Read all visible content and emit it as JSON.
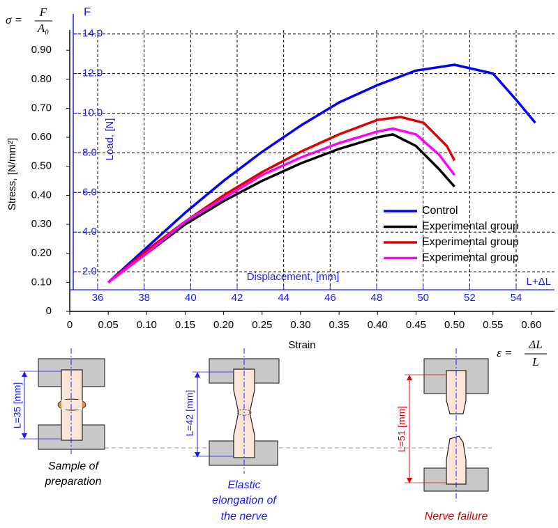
{
  "chart_data": {
    "type": "line",
    "stress_formula": {
      "lhs": "σ =",
      "numerator": "F",
      "denominator": "A₀"
    },
    "strain_formula": {
      "lhs": "ε =",
      "numerator": "ΔL",
      "denominator": "L"
    },
    "x_label": "Strain",
    "y_label": "Stress, [N/mm²]",
    "y2_title": "F",
    "y2_label": "Load, [N]",
    "x2_label": "Displacement, [mm]",
    "x2_title": "L+ΔL",
    "xlim": [
      0,
      0.63
    ],
    "xticks": [
      0,
      0.05,
      {
        "value": 0.1,
        "label": "0.10"
      },
      0.15,
      {
        "value": 0.2,
        "label": "0.20"
      },
      0.25,
      {
        "value": 0.3,
        "label": "0.30"
      },
      0.35,
      {
        "value": 0.4,
        "label": "0.40"
      },
      0.45,
      {
        "value": 0.5,
        "label": "0.50"
      },
      0.55,
      {
        "value": 0.6,
        "label": "0.60"
      }
    ],
    "ylim": [
      0,
      0.97
    ],
    "yticks": [
      0,
      {
        "value": 0.1,
        "label": "0.10"
      },
      {
        "value": 0.2,
        "label": "0.20"
      },
      {
        "value": 0.3,
        "label": "0.30"
      },
      {
        "value": 0.4,
        "label": "0.40"
      },
      {
        "value": 0.5,
        "label": "0.50"
      },
      {
        "value": 0.6,
        "label": "0.60"
      },
      {
        "value": 0.7,
        "label": "0.70"
      },
      {
        "value": 0.8,
        "label": "0.80"
      },
      {
        "value": 0.9,
        "label": "0.90"
      }
    ],
    "y2lim": [
      0,
      14.2
    ],
    "y2ticks": [
      {
        "value": 2,
        "label": "2.0"
      },
      {
        "value": 4,
        "label": "4.0"
      },
      {
        "value": 6,
        "label": "6.0"
      },
      {
        "value": 8,
        "label": "8.0"
      },
      {
        "value": 10,
        "label": "10.0"
      },
      {
        "value": 12,
        "label": "12.0"
      },
      {
        "value": 14,
        "label": "14.0"
      }
    ],
    "x2lim": [
      34.8,
      55.65
    ],
    "x2ticks": [
      36,
      38,
      40,
      42,
      44,
      46,
      48,
      50,
      52,
      54
    ],
    "grid": true,
    "legend": "lower right",
    "series": [
      {
        "name": "Control",
        "color": "#0000ff",
        "x": [
          0.05,
          0.1,
          0.15,
          0.2,
          0.25,
          0.3,
          0.35,
          0.4,
          0.45,
          0.5,
          0.55,
          0.58,
          0.605
        ],
        "values": [
          0.1,
          0.22,
          0.34,
          0.45,
          0.55,
          0.64,
          0.72,
          0.78,
          0.83,
          0.85,
          0.82,
          0.73,
          0.65
        ]
      },
      {
        "name": "Experimental group",
        "color": "#000000",
        "x": [
          0.05,
          0.1,
          0.15,
          0.2,
          0.25,
          0.3,
          0.35,
          0.4,
          0.42,
          0.45,
          0.48,
          0.5
        ],
        "values": [
          0.1,
          0.2,
          0.3,
          0.38,
          0.45,
          0.51,
          0.56,
          0.6,
          0.61,
          0.57,
          0.49,
          0.43
        ]
      },
      {
        "name": "Experimental group",
        "color": "#e00000",
        "x": [
          0.05,
          0.1,
          0.15,
          0.2,
          0.25,
          0.3,
          0.35,
          0.4,
          0.43,
          0.46,
          0.49,
          0.5
        ],
        "values": [
          0.1,
          0.21,
          0.31,
          0.4,
          0.48,
          0.55,
          0.61,
          0.66,
          0.67,
          0.65,
          0.57,
          0.52
        ]
      },
      {
        "name": "Experimental group",
        "color": "#ff00ff",
        "x": [
          0.05,
          0.1,
          0.15,
          0.2,
          0.25,
          0.3,
          0.35,
          0.4,
          0.42,
          0.45,
          0.48,
          0.5
        ],
        "values": [
          0.1,
          0.2,
          0.31,
          0.39,
          0.47,
          0.53,
          0.58,
          0.62,
          0.63,
          0.61,
          0.54,
          0.47
        ]
      }
    ]
  },
  "diagrams": [
    {
      "length_label": "L=35 [mm]",
      "caption": [
        "Sample of",
        "preparation"
      ]
    },
    {
      "length_label": "L=42 [mm]",
      "caption": [
        "Elastic",
        "elongation of",
        "the nerve"
      ]
    },
    {
      "length_label": "L=51 [mm]",
      "caption": [
        "Nerve failure"
      ]
    }
  ]
}
